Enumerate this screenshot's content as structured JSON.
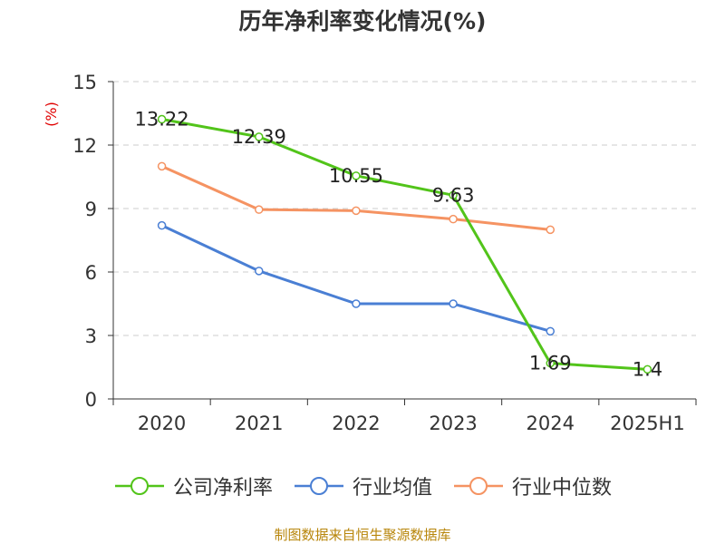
{
  "title": "历年净利率变化情况(%)",
  "source": "制图数据来自恒生聚源数据库",
  "chart_data": {
    "type": "line",
    "title": "历年净利率变化情况(%)",
    "ylabel": "(%)",
    "xlabel": "",
    "categories": [
      "2020",
      "2021",
      "2022",
      "2023",
      "2024",
      "2025H1"
    ],
    "ylim": [
      0,
      15
    ],
    "yticks": [
      0,
      3,
      6,
      9,
      12,
      15
    ],
    "grid": true,
    "legend_position": "bottom",
    "series": [
      {
        "name": "公司净利率",
        "color": "#52c41a",
        "values": [
          13.22,
          12.39,
          10.55,
          9.63,
          1.69,
          1.4
        ],
        "labels": [
          "13.22",
          "12.39",
          "10.55",
          "9.63",
          "1.69",
          "1.4"
        ]
      },
      {
        "name": "行业均值",
        "color": "#4a7fd4",
        "values": [
          8.2,
          6.05,
          4.5,
          4.5,
          3.2,
          null
        ]
      },
      {
        "name": "行业中位数",
        "color": "#f59362",
        "values": [
          11.0,
          8.95,
          8.9,
          8.5,
          8.0,
          null
        ]
      }
    ]
  }
}
